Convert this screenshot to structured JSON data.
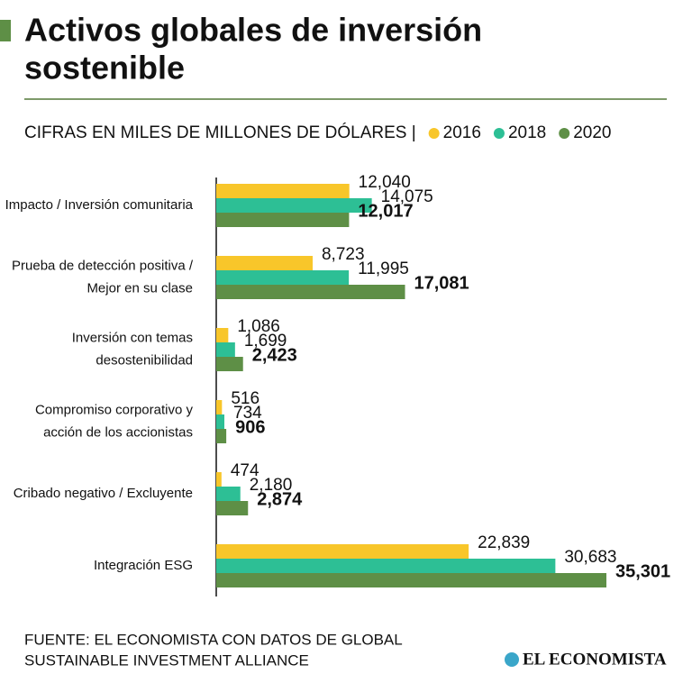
{
  "chart_data": {
    "type": "bar",
    "orientation": "horizontal",
    "title": [
      "Activos globales de inversión",
      "sostenible"
    ],
    "subtitle": "CIFRAS EN MILES DE MILLONES DE DÓLARES |",
    "categories": [
      [
        "Impacto / Inversión comunitaria"
      ],
      [
        "Prueba de detección positiva /",
        "Mejor en su clase"
      ],
      [
        "Inversión con temas",
        "desostenibilidad"
      ],
      [
        "Compromiso corporativo y",
        "acción de los accionistas"
      ],
      [
        "Cribado negativo / Excluyente"
      ],
      [
        "Integración ESG"
      ]
    ],
    "series": [
      {
        "name": "2016",
        "color": "#f8c62a",
        "values": [
          12040,
          8723,
          1086,
          516,
          474,
          22839
        ],
        "value_labels": [
          "12,040",
          "8,723",
          "1,086",
          "516",
          "474",
          "22,839"
        ]
      },
      {
        "name": "2018",
        "color": "#2dbf95",
        "values": [
          14075,
          11995,
          1699,
          734,
          2180,
          30683
        ],
        "value_labels": [
          "14,075",
          "11,995",
          "1,699",
          "734",
          "2,180",
          "30,683"
        ]
      },
      {
        "name": "2020",
        "color": "#5e8f46",
        "values": [
          12017,
          17081,
          2423,
          906,
          2874,
          35301
        ],
        "value_labels": [
          "12,017",
          "17,081",
          "2,423",
          "906",
          "2,874",
          "35,301"
        ]
      }
    ],
    "source": [
      "FUENTE: EL ECONOMISTA CON DATOS DE GLOBAL",
      "SUSTAINABLE INVESTMENT ALLIANCE"
    ],
    "logo": "EL ECONOMISTA"
  }
}
